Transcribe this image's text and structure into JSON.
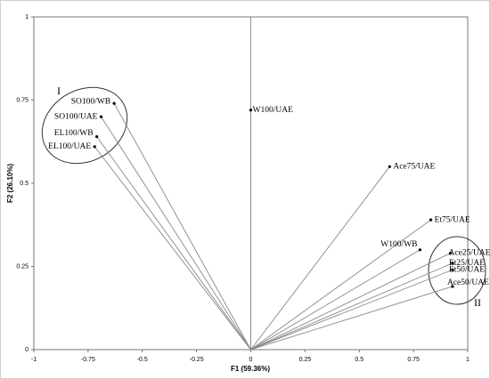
{
  "chart_data": {
    "type": "scatter",
    "x_label": "F1 (59.36%)",
    "y_label": "F2 (26.10%)",
    "labels": [
      "SO100/WB",
      "SO100/UAE",
      "EL100/WB",
      "EL100/UAE",
      "W100/UAE",
      "Ace75/UAE",
      "Et75/UAE",
      "W100/WB",
      "Ace25/UAE",
      "Et25/UAE",
      "Et50/UAE",
      "Ace50/UAE"
    ],
    "x": [
      -0.63,
      -0.69,
      -0.71,
      -0.72,
      0,
      0.64,
      0.83,
      0.78,
      0.92,
      0.93,
      0.93,
      0.93
    ],
    "values": [
      0.74,
      0.7,
      0.64,
      0.61,
      0.72,
      0.55,
      0.39,
      0.3,
      0.29,
      0.26,
      0.24,
      0.19
    ],
    "group_labels": [
      "I",
      "II"
    ],
    "xlim": [
      -1,
      1
    ],
    "xticks": [
      -1,
      -0.75,
      -0.5,
      -0.25,
      0,
      0.25,
      0.5,
      0.75,
      1
    ],
    "ylim": [
      0,
      1
    ],
    "yticks": [
      0,
      0.25,
      0.5,
      0.75,
      1
    ],
    "color": "#000000",
    "vector_color": "#888888"
  }
}
